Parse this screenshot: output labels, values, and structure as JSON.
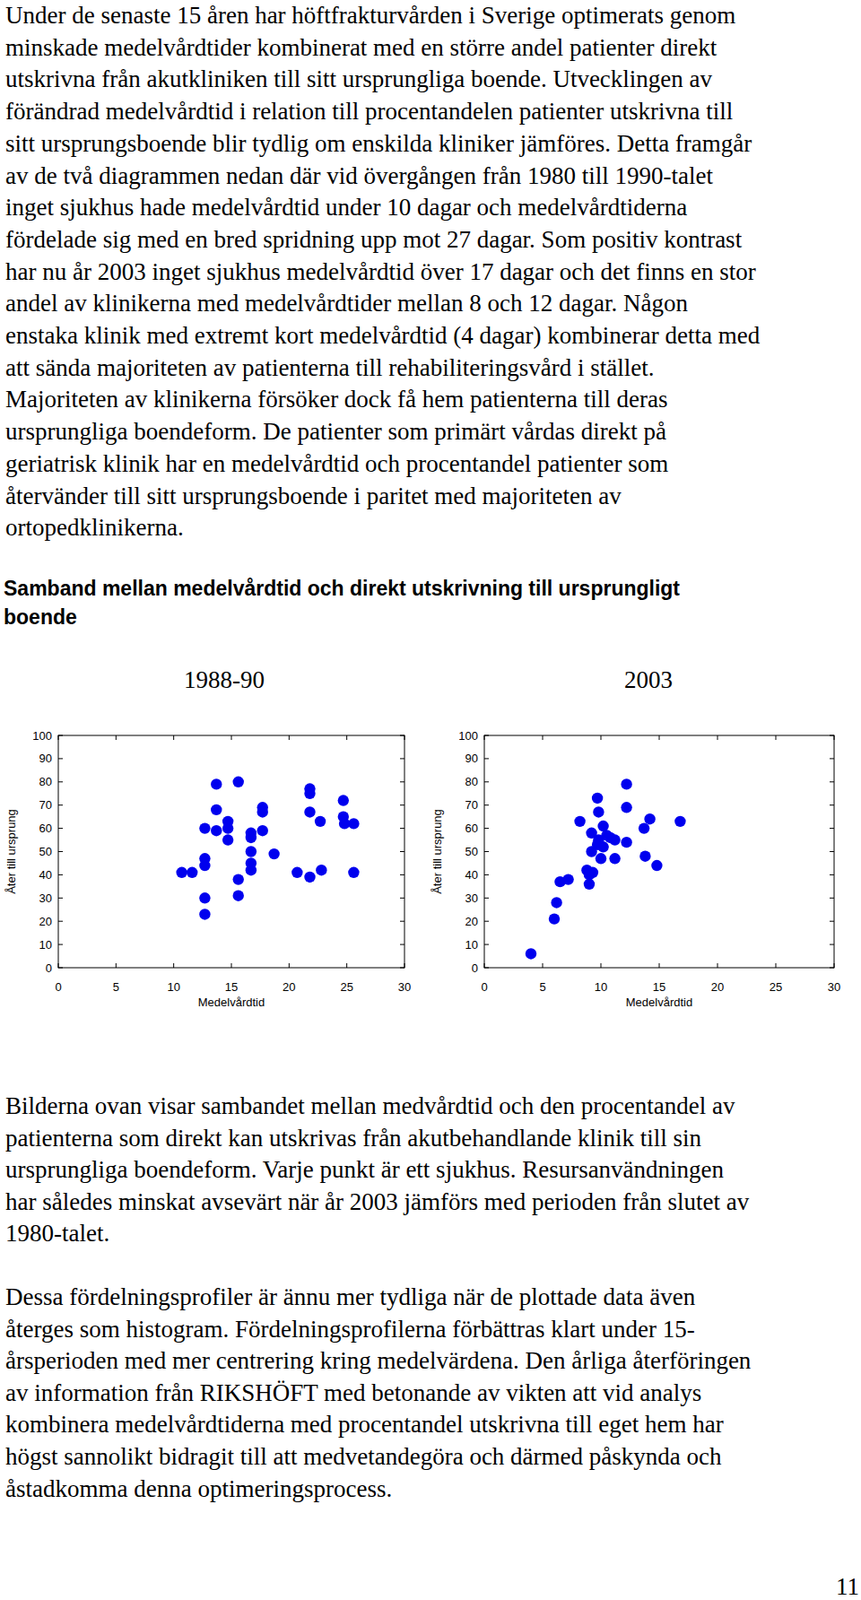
{
  "intro": {
    "lines": [
      "Under de senaste 15 åren har höftfrakturvården i Sverige optimerats genom",
      "minskade medelvårdtider kombinerat med en större andel patienter direkt",
      "utskrivna från akutkliniken till sitt ursprungliga boende. Utvecklingen av",
      "förändrad medelvårdtid i relation till procentandelen patienter utskrivna till",
      "sitt ursprungsboende blir tydlig om enskilda kliniker jämföres. Detta framgår",
      "av de två diagrammen nedan där vid övergången från 1980 till 1990-talet",
      "inget sjukhus hade medelvårdtid under 10 dagar och medelvårdtiderna",
      "fördelade sig med en bred spridning upp mot 27 dagar. Som positiv kontrast",
      "har nu år 2003 inget sjukhus medelvårdtid över 17 dagar och det finns en stor",
      "andel av klinikerna med medelvårdtider mellan 8 och 12 dagar. Någon",
      "enstaka klinik med extremt kort medelvårdtid (4 dagar) kombinerar detta med",
      "att sända majoriteten av patienterna till rehabiliteringsvård i stället.",
      "Majoriteten av klinikerna försöker dock få hem patienterna till deras",
      "ursprungliga boendeform. De patienter som primärt vårdas direkt på",
      "geriatrisk klinik har en medelvårdtid och procentandel patienter som",
      "återvänder till sitt ursprungsboende i paritet med majoriteten av",
      "ortopedklinikerna."
    ]
  },
  "heading": {
    "lines": [
      "Samband mellan medelvårdtid och direkt utskrivning till ursprungligt",
      "boende"
    ]
  },
  "chart_data": [
    {
      "type": "scatter",
      "title": "1988-90",
      "x_label": "Medelvårdtid",
      "y_label": "Åter till ursprung",
      "x": [
        10.7,
        11.6,
        12.7,
        12.7,
        12.7,
        12.7,
        12.7,
        13.7,
        13.7,
        13.7,
        14.7,
        14.7,
        14.7,
        15.6,
        15.6,
        15.6,
        16.7,
        16.7,
        16.7,
        16.7,
        16.7,
        17.7,
        17.7,
        17.7,
        18.7,
        20.7,
        21.8,
        21.8,
        21.8,
        21.8,
        22.7,
        22.8,
        24.7,
        24.7,
        25.6,
        24.8,
        25.6
      ],
      "values": [
        41,
        41,
        47,
        44,
        60,
        30,
        23,
        79,
        68,
        59,
        63,
        60,
        55,
        80,
        38,
        31,
        58,
        56,
        50,
        45,
        42,
        69,
        67,
        59,
        49,
        41,
        77,
        75,
        67,
        39,
        63,
        42,
        72,
        65,
        62,
        62,
        41
      ],
      "color": "#0000ee",
      "marker": "circle",
      "xlim": [
        0,
        30
      ],
      "ylim": [
        0,
        100
      ],
      "xticks": [
        0,
        5,
        10,
        15,
        20,
        25,
        30
      ],
      "yticks": [
        0,
        10,
        20,
        30,
        40,
        50,
        60,
        70,
        80,
        90,
        100
      ],
      "grid": false
    },
    {
      "type": "scatter",
      "title": "2003",
      "x_label": "Medelvårdtid",
      "y_label": "Åter till ursprung",
      "x": [
        4,
        6,
        6.2,
        6.5,
        7.2,
        8.2,
        8.8,
        9,
        9.2,
        9.2,
        9.3,
        9.7,
        9.8,
        9.7,
        9.8,
        10.2,
        10.2,
        10.5,
        10.8,
        11.2,
        11.2,
        12.2,
        12.2,
        12.2,
        13.7,
        13.8,
        14.2,
        14.8,
        16.8,
        9,
        10
      ],
      "values": [
        6,
        21,
        28,
        37,
        38,
        63,
        42,
        40,
        50,
        58,
        41,
        73,
        67,
        53,
        55,
        61,
        52,
        57,
        56,
        47,
        55,
        79,
        69,
        54,
        60,
        48,
        64,
        44,
        63,
        36,
        47
      ],
      "color": "#0000ee",
      "marker": "circle",
      "xlim": [
        0,
        30
      ],
      "ylim": [
        0,
        100
      ],
      "xticks": [
        0,
        5,
        10,
        15,
        20,
        25,
        30
      ],
      "yticks": [
        0,
        10,
        20,
        30,
        40,
        50,
        60,
        70,
        80,
        90,
        100
      ],
      "grid": false
    }
  ],
  "caption": {
    "lines": [
      "Bilderna ovan visar sambandet mellan medvårdtid och den procentandel av",
      "patienterna som direkt kan utskrivas från akutbehandlande klinik till sin",
      "ursprungliga boendeform. Varje punkt är ett sjukhus. Resursanvändningen",
      "har således minskat avsevärt när år 2003 jämförs med perioden från slutet av",
      "1980-talet."
    ]
  },
  "closing": {
    "lines": [
      "Dessa fördelningsprofiler är ännu mer tydliga när de plottade data även",
      "återges som histogram. Fördelningsprofilerna förbättras klart under 15-",
      "årsperioden med mer centrering kring medelvärdena. Den årliga återföringen",
      "av information från RIKSHÖFT med betonande av vikten att vid analys",
      "kombinera medelvårdtiderna med procentandel utskrivna till eget hem har",
      "högst sannolikt bidragit till att medvetandegöra och därmed påskynda och",
      "åstadkomma denna optimeringsprocess."
    ]
  },
  "page_number": "11"
}
